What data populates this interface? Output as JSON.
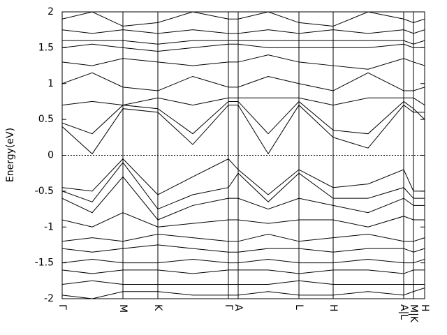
{
  "chart_data": {
    "type": "line",
    "y_label": "Energy(eV)",
    "x": [
      0,
      43,
      87,
      137,
      187,
      238,
      252,
      295,
      339,
      388,
      438,
      489,
      503,
      519
    ],
    "xlim": [
      0,
      519
    ],
    "xticks": [
      {
        "value": 0,
        "label": "Γ"
      },
      {
        "value": 87,
        "label": "M"
      },
      {
        "value": 137,
        "label": "K"
      },
      {
        "value": 238,
        "label": "Γ"
      },
      {
        "value": 252,
        "label": "A"
      },
      {
        "value": 339,
        "label": "L"
      },
      {
        "value": 388,
        "label": "H"
      },
      {
        "value": 489,
        "label": "A|L"
      },
      {
        "value": 503,
        "label": "M|K"
      },
      {
        "value": 519,
        "label": "H"
      }
    ],
    "ylim": [
      -2,
      2
    ],
    "yticks": [
      -2,
      -1.5,
      -1,
      -0.5,
      0,
      0.5,
      1,
      1.5,
      2
    ],
    "zero_line": true,
    "series": [
      {
        "color": "#000000",
        "values": [
          0.4,
          0.02,
          0.65,
          0.6,
          0.15,
          0.7,
          0.7,
          0.02,
          0.7,
          0.25,
          0.1,
          0.7,
          0.6,
          0.6
        ]
      },
      {
        "color": "#000000",
        "values": [
          0.45,
          0.3,
          0.7,
          0.65,
          0.3,
          0.75,
          0.75,
          0.3,
          0.75,
          0.35,
          0.3,
          0.75,
          0.65,
          0.5
        ]
      },
      {
        "color": "#000000",
        "values": [
          0.7,
          0.75,
          0.7,
          0.8,
          0.7,
          0.8,
          0.8,
          0.8,
          0.8,
          0.7,
          0.8,
          0.8,
          0.8,
          0.7
        ]
      },
      {
        "color": "#000000",
        "values": [
          1.0,
          1.15,
          0.95,
          0.9,
          1.1,
          0.95,
          0.95,
          1.1,
          1.0,
          0.9,
          1.15,
          0.9,
          0.9,
          0.95
        ]
      },
      {
        "color": "#000000",
        "values": [
          1.3,
          1.25,
          1.35,
          1.3,
          1.25,
          1.3,
          1.3,
          1.4,
          1.3,
          1.25,
          1.2,
          1.35,
          1.3,
          1.25
        ]
      },
      {
        "color": "#000000",
        "values": [
          1.5,
          1.55,
          1.5,
          1.45,
          1.5,
          1.55,
          1.55,
          1.5,
          1.5,
          1.5,
          1.5,
          1.55,
          1.5,
          1.5
        ]
      },
      {
        "color": "#000000",
        "values": [
          1.6,
          1.6,
          1.6,
          1.55,
          1.6,
          1.6,
          1.6,
          1.6,
          1.6,
          1.6,
          1.6,
          1.6,
          1.55,
          1.6
        ]
      },
      {
        "color": "#000000",
        "values": [
          1.75,
          1.7,
          1.75,
          1.7,
          1.75,
          1.7,
          1.7,
          1.75,
          1.7,
          1.75,
          1.7,
          1.75,
          1.7,
          1.75
        ]
      },
      {
        "color": "#000000",
        "values": [
          1.9,
          2.0,
          1.8,
          1.85,
          2.0,
          1.9,
          1.9,
          2.0,
          1.85,
          1.8,
          2.0,
          1.9,
          1.85,
          1.9
        ]
      },
      {
        "color": "#000000",
        "values": [
          -0.45,
          -0.5,
          -0.05,
          -0.55,
          -0.3,
          -0.05,
          -0.2,
          -0.55,
          -0.2,
          -0.45,
          -0.4,
          -0.2,
          -0.5,
          -0.5
        ]
      },
      {
        "color": "#000000",
        "values": [
          -0.5,
          -0.65,
          -0.1,
          -0.75,
          -0.55,
          -0.45,
          -0.25,
          -0.65,
          -0.25,
          -0.6,
          -0.6,
          -0.45,
          -0.6,
          -0.6
        ]
      },
      {
        "color": "#000000",
        "values": [
          -0.6,
          -0.8,
          -0.3,
          -0.9,
          -0.7,
          -0.6,
          -0.6,
          -0.75,
          -0.6,
          -0.7,
          -0.8,
          -0.6,
          -0.7,
          -0.7
        ]
      },
      {
        "color": "#000000",
        "values": [
          -0.9,
          -1.0,
          -0.8,
          -1.0,
          -0.95,
          -0.9,
          -0.9,
          -0.95,
          -0.9,
          -0.9,
          -1.0,
          -0.85,
          -0.9,
          -0.9
        ]
      },
      {
        "color": "#000000",
        "values": [
          -1.2,
          -1.15,
          -1.2,
          -1.1,
          -1.15,
          -1.2,
          -1.2,
          -1.1,
          -1.2,
          -1.15,
          -1.1,
          -1.2,
          -1.2,
          -1.15
        ]
      },
      {
        "color": "#000000",
        "values": [
          -1.3,
          -1.35,
          -1.3,
          -1.25,
          -1.3,
          -1.35,
          -1.35,
          -1.3,
          -1.3,
          -1.35,
          -1.3,
          -1.3,
          -1.35,
          -1.3
        ]
      },
      {
        "color": "#000000",
        "values": [
          -1.5,
          -1.45,
          -1.5,
          -1.5,
          -1.45,
          -1.5,
          -1.5,
          -1.45,
          -1.5,
          -1.5,
          -1.45,
          -1.5,
          -1.5,
          -1.45
        ]
      },
      {
        "color": "#000000",
        "values": [
          -1.6,
          -1.65,
          -1.6,
          -1.6,
          -1.65,
          -1.6,
          -1.6,
          -1.6,
          -1.65,
          -1.6,
          -1.6,
          -1.65,
          -1.6,
          -1.6
        ]
      },
      {
        "color": "#000000",
        "values": [
          -1.8,
          -1.75,
          -1.8,
          -1.8,
          -1.8,
          -1.8,
          -1.8,
          -1.8,
          -1.75,
          -1.8,
          -1.8,
          -1.8,
          -1.8,
          -1.8
        ]
      },
      {
        "color": "#000000",
        "values": [
          -1.95,
          -2.0,
          -1.9,
          -1.9,
          -1.95,
          -1.95,
          -1.95,
          -1.9,
          -1.95,
          -1.95,
          -1.9,
          -1.95,
          -1.9,
          -1.85
        ]
      }
    ]
  }
}
